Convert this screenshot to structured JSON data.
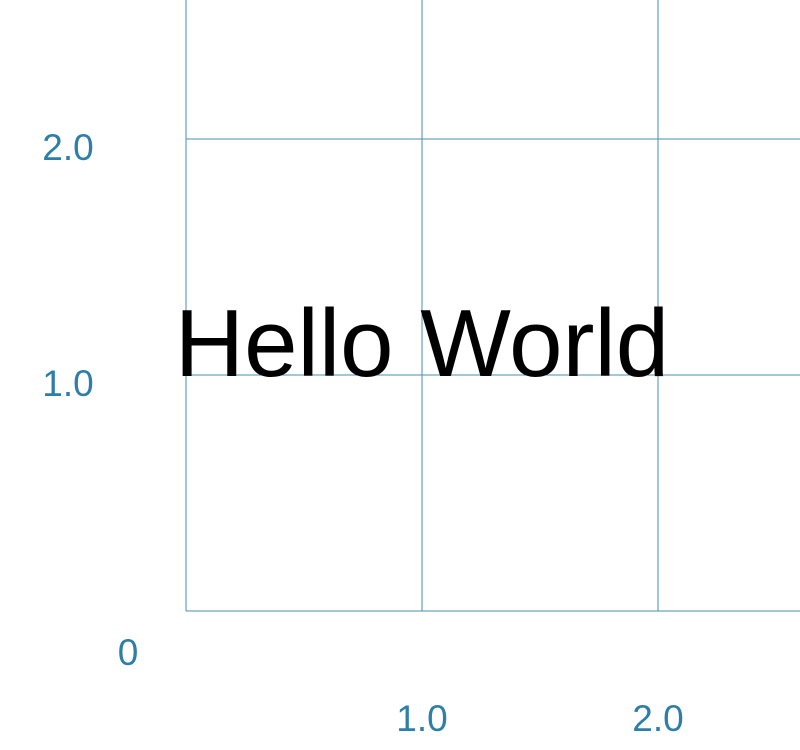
{
  "colors": {
    "grid": "#4a8fae",
    "tick_label": "#2d7fa8",
    "text": "#000000",
    "background": "#ffffff"
  },
  "chart_data": {
    "type": "scatter",
    "xlim": [
      0,
      2.6
    ],
    "ylim": [
      0,
      2.0
    ],
    "x_ticks": [
      1.0,
      2.0
    ],
    "y_ticks": [
      1.0,
      2.0
    ],
    "x_tick_labels": [
      "1.0",
      "2.0"
    ],
    "y_tick_labels": [
      "1.0",
      "2.0"
    ],
    "origin_label": "0",
    "grid": true,
    "annotations": [
      {
        "text": "Hello World",
        "x": 1.0,
        "y": 1.0
      }
    ]
  }
}
